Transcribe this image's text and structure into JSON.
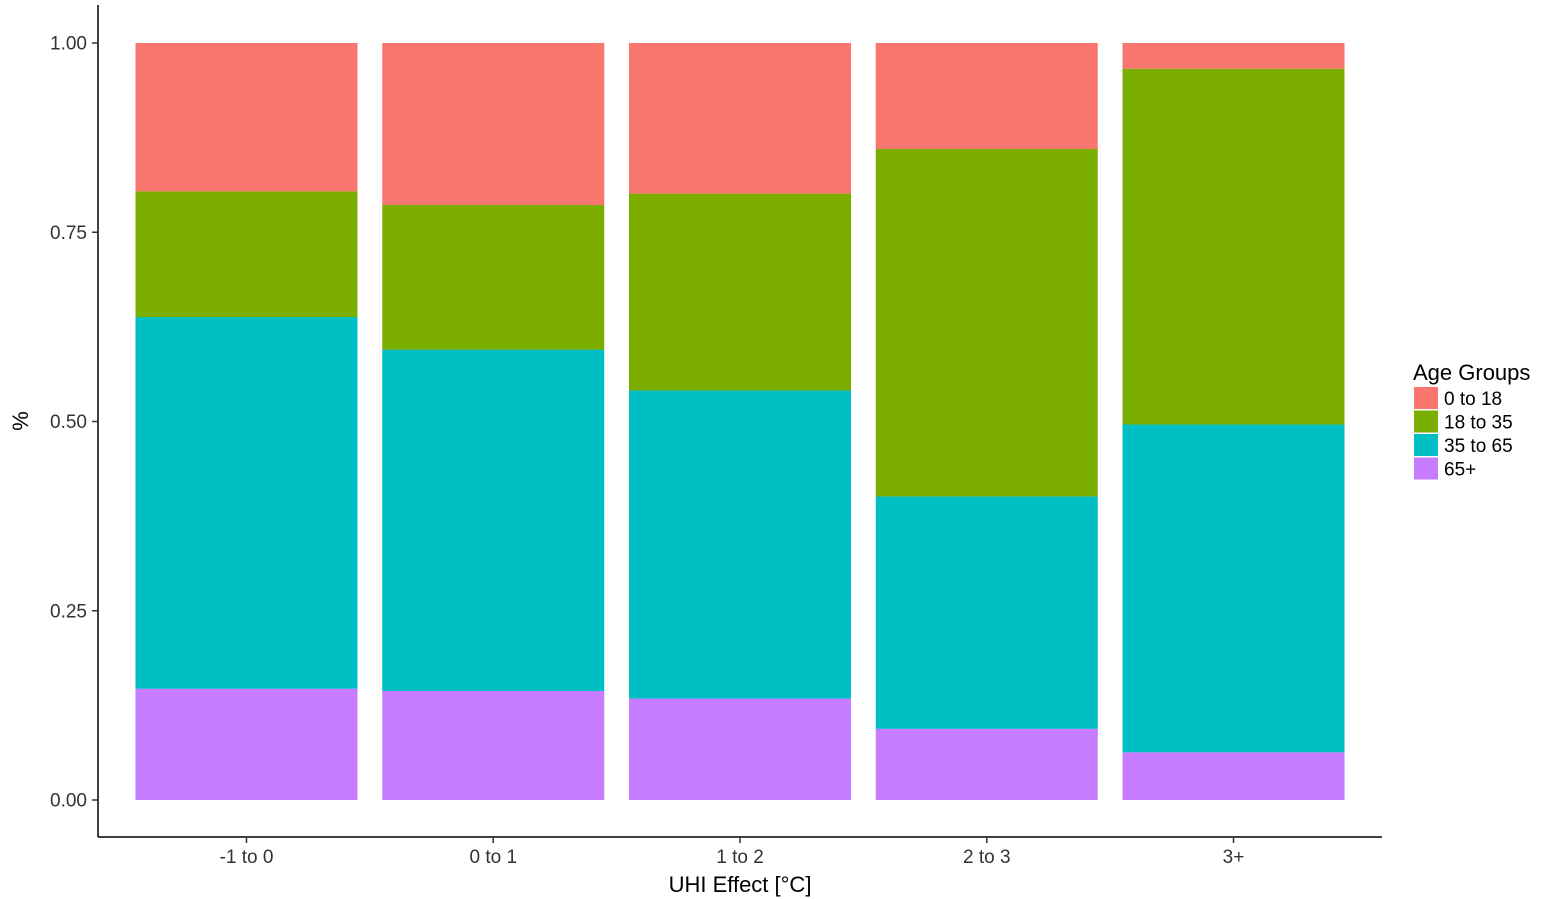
{
  "chart_data": {
    "type": "bar",
    "stacked": true,
    "normalized": true,
    "categories": [
      "-1 to 0",
      "0 to 1",
      "1 to 2",
      "2 to 3",
      "3+"
    ],
    "series": [
      {
        "name": "65+",
        "color": "#C77CFF",
        "values": [
          0.147,
          0.144,
          0.134,
          0.094,
          0.063
        ]
      },
      {
        "name": "35 to 65",
        "color": "#00BFC4",
        "values": [
          0.491,
          0.451,
          0.407,
          0.307,
          0.433
        ]
      },
      {
        "name": "18 to 35",
        "color": "#7CAE00",
        "values": [
          0.166,
          0.191,
          0.26,
          0.459,
          0.47
        ]
      },
      {
        "name": "0 to 18",
        "color": "#F8766D",
        "values": [
          0.196,
          0.214,
          0.199,
          0.14,
          0.034
        ]
      }
    ],
    "xlabel": "UHI Effect [°C]",
    "ylabel": "%",
    "ylim": [
      0,
      1
    ],
    "yticks": [
      "0.00",
      "0.25",
      "0.50",
      "0.75",
      "1.00"
    ],
    "grid": false,
    "legend": {
      "title": "Age Groups",
      "position": "right",
      "entries": [
        "0 to 18",
        "18 to 35",
        "35 to 65",
        "65+"
      ]
    }
  }
}
